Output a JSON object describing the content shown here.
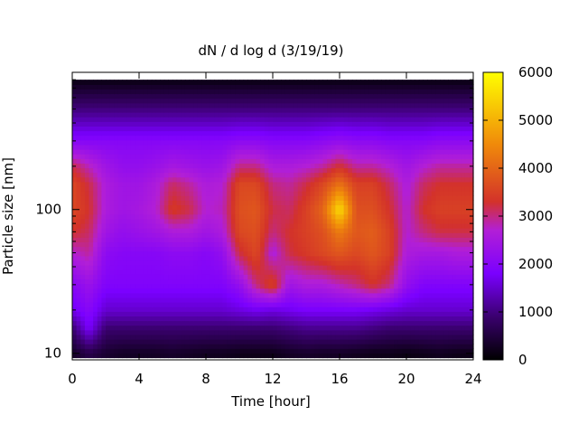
{
  "chart_data": {
    "type": "heatmap",
    "title": "dN / d log d (3/19/19)",
    "xlabel": "Time [hour]",
    "ylabel": "Particle size [nm]",
    "x_ticks": [
      "0",
      "4",
      "8",
      "12",
      "16",
      "20",
      "24"
    ],
    "y_ticks": [
      "10",
      "100"
    ],
    "xlim": [
      0,
      24
    ],
    "ylim": [
      9,
      900
    ],
    "yscale": "log",
    "grid": false,
    "colorbar": {
      "label": "",
      "range": [
        0,
        6000
      ],
      "ticks": [
        "0",
        "1000",
        "2000",
        "3000",
        "4000",
        "5000",
        "6000"
      ],
      "colormap": [
        "#000000",
        "#3a006e",
        "#7a00ff",
        "#b21fd6",
        "#d3322a",
        "#f08a0a",
        "#ffff00"
      ]
    },
    "x_hours": [
      0,
      1,
      2,
      3,
      4,
      5,
      6,
      7,
      8,
      9,
      10,
      11,
      12,
      13,
      14,
      15,
      16,
      17,
      18,
      19,
      20,
      21,
      22,
      23,
      24
    ],
    "size_nm": [
      10,
      15,
      20,
      30,
      50,
      70,
      100,
      150,
      200,
      300,
      500,
      800
    ],
    "z": [
      [
        300,
        600,
        400,
        300,
        300,
        300,
        350,
        300,
        250,
        250,
        200,
        200,
        200,
        300,
        350,
        300,
        300,
        250,
        200,
        200,
        150,
        200,
        250,
        200,
        200
      ],
      [
        900,
        1800,
        900,
        900,
        900,
        900,
        900,
        900,
        900,
        900,
        900,
        900,
        900,
        1000,
        1100,
        1100,
        1100,
        1100,
        1000,
        900,
        900,
        900,
        900,
        900,
        900
      ],
      [
        1700,
        2000,
        1500,
        1500,
        1500,
        1500,
        1500,
        1500,
        1500,
        1500,
        1600,
        1700,
        1600,
        1700,
        1800,
        1800,
        1800,
        1800,
        1700,
        1600,
        1500,
        1500,
        1500,
        1500,
        1500
      ],
      [
        2000,
        2300,
        1900,
        1900,
        1900,
        1900,
        1900,
        1900,
        1900,
        1900,
        2200,
        3000,
        3500,
        2400,
        2600,
        2600,
        2800,
        3000,
        3300,
        3000,
        2200,
        1900,
        1900,
        1900,
        1900
      ],
      [
        2700,
        2900,
        2100,
        2000,
        2000,
        2000,
        2100,
        2100,
        2000,
        2200,
        3200,
        3600,
        2600,
        3200,
        3400,
        3600,
        3800,
        3600,
        3800,
        3500,
        2600,
        2500,
        2500,
        2600,
        2600
      ],
      [
        3300,
        3100,
        2400,
        2200,
        2300,
        2400,
        2600,
        2600,
        2400,
        2600,
        3600,
        3700,
        3000,
        3300,
        3500,
        3700,
        4300,
        3800,
        3900,
        3500,
        2700,
        3000,
        3200,
        3200,
        3200
      ],
      [
        3600,
        3300,
        2600,
        2400,
        2500,
        2700,
        3400,
        3200,
        2700,
        2800,
        3700,
        3800,
        3200,
        3100,
        3500,
        4000,
        5600,
        3700,
        3700,
        3300,
        2700,
        3300,
        3500,
        3500,
        3500
      ],
      [
        3600,
        3200,
        2600,
        2400,
        2400,
        2600,
        3100,
        2900,
        2600,
        2700,
        3600,
        3600,
        3000,
        2900,
        3200,
        3600,
        4200,
        3500,
        3500,
        3100,
        2600,
        3100,
        3300,
        3300,
        3300
      ],
      [
        3200,
        2800,
        2400,
        2200,
        2200,
        2300,
        2500,
        2400,
        2300,
        2400,
        3000,
        3000,
        2600,
        2600,
        2700,
        2900,
        3300,
        2900,
        2900,
        2700,
        2400,
        2700,
        2900,
        2900,
        2900
      ],
      [
        2000,
        2000,
        2000,
        2000,
        2000,
        2000,
        2000,
        2000,
        2000,
        2000,
        2100,
        2100,
        2000,
        2000,
        2000,
        2100,
        2200,
        2100,
        2100,
        2000,
        2000,
        2000,
        2100,
        2100,
        2100
      ],
      [
        1000,
        1000,
        1000,
        1000,
        1000,
        1000,
        1000,
        1000,
        1000,
        1000,
        1000,
        1000,
        1000,
        1000,
        1000,
        1000,
        1000,
        1000,
        1000,
        1000,
        1000,
        1000,
        1000,
        1000,
        1000
      ],
      [
        150,
        150,
        150,
        150,
        150,
        150,
        150,
        150,
        150,
        150,
        150,
        150,
        150,
        150,
        150,
        150,
        150,
        150,
        150,
        150,
        150,
        150,
        150,
        150,
        150
      ]
    ]
  }
}
